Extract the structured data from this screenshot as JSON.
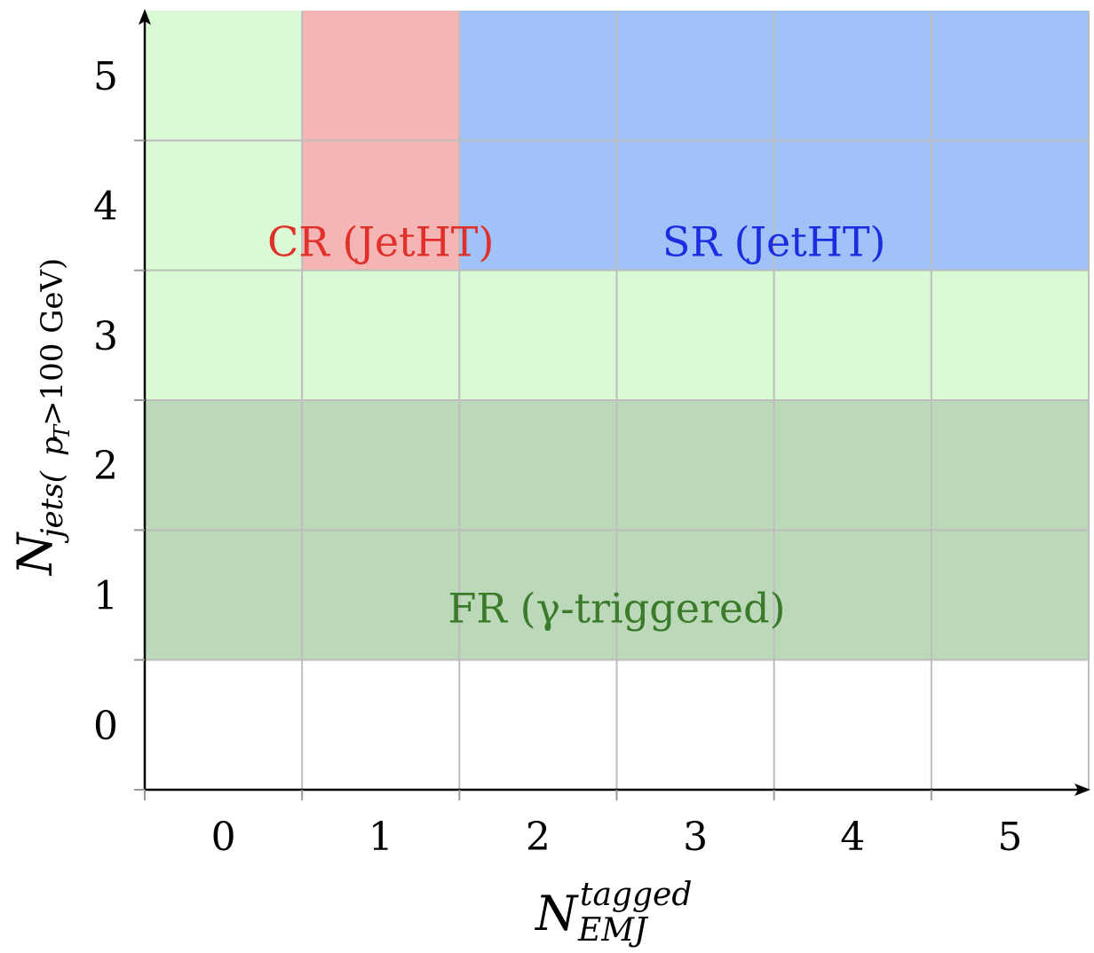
{
  "chart_data": {
    "type": "heatmap",
    "x_categories": [
      "0",
      "1",
      "2",
      "3",
      "4",
      "5"
    ],
    "y_categories": [
      "0",
      "1",
      "2",
      "3",
      "4",
      "5"
    ],
    "x_axis_title": {
      "main": "N",
      "superscript": "tagged",
      "subscript": "EMJ"
    },
    "y_axis_title": {
      "main": "N",
      "subscript_prefix": "jets(",
      "subscript_var": "p",
      "subscript_var_sub": "T",
      "subscript_rest": ">100 GeV)"
    },
    "regions": [
      {
        "name": "background-light",
        "x_from": 0,
        "x_to": 5,
        "y_from": 3,
        "y_to": 5,
        "color": "#dafad6"
      },
      {
        "name": "FR",
        "label": "FR (γ-triggered)",
        "x_from": 0,
        "x_to": 5,
        "y_from": 1,
        "y_to": 2,
        "color": "#bbd9b8",
        "label_color": "#3a7a2a"
      },
      {
        "name": "CR",
        "label": "CR (JetHT)",
        "x_from": 1,
        "x_to": 1,
        "y_from": 4,
        "y_to": 5,
        "color": "#f5b5b5",
        "label_color": "#e0302a"
      },
      {
        "name": "SR",
        "label": "SR (JetHT)",
        "x_from": 2,
        "x_to": 5,
        "y_from": 4,
        "y_to": 5,
        "color": "#a0c2f8",
        "label_color": "#1a2ee0"
      }
    ],
    "grid": true,
    "grid_color": "#bdbdbd"
  }
}
